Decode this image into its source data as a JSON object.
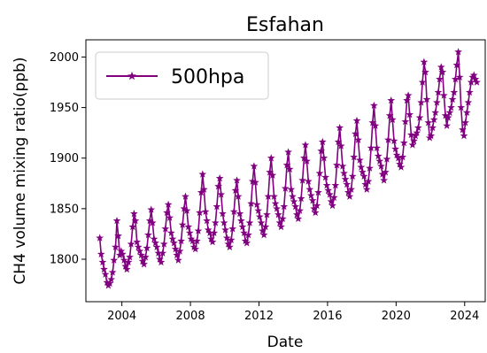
{
  "chart_data": {
    "type": "line",
    "title": "Esfahan",
    "xlabel": "Date",
    "ylabel": "CH4 volume mixing ratio(ppb)",
    "xlim": [
      2001.9,
      2025.2
    ],
    "ylim": [
      1758,
      2017
    ],
    "x_ticks": [
      2004,
      2008,
      2012,
      2016,
      2020,
      2024
    ],
    "y_ticks": [
      1800,
      1850,
      1900,
      1950,
      2000
    ],
    "grid": false,
    "legend": {
      "position": "top-left"
    },
    "series": [
      {
        "name": "500hpa",
        "color": "#800080",
        "marker": "star",
        "x": [
          2002.71,
          2002.79,
          2002.88,
          2002.96,
          2003.04,
          2003.13,
          2003.21,
          2003.29,
          2003.38,
          2003.46,
          2003.54,
          2003.63,
          2003.71,
          2003.79,
          2003.88,
          2003.96,
          2004.04,
          2004.13,
          2004.21,
          2004.29,
          2004.38,
          2004.46,
          2004.54,
          2004.63,
          2004.71,
          2004.79,
          2004.88,
          2004.96,
          2005.04,
          2005.13,
          2005.21,
          2005.29,
          2005.38,
          2005.46,
          2005.54,
          2005.63,
          2005.71,
          2005.79,
          2005.88,
          2005.96,
          2006.04,
          2006.13,
          2006.21,
          2006.29,
          2006.38,
          2006.46,
          2006.54,
          2006.63,
          2006.71,
          2006.79,
          2006.88,
          2006.96,
          2007.04,
          2007.13,
          2007.21,
          2007.29,
          2007.38,
          2007.46,
          2007.54,
          2007.63,
          2007.71,
          2007.79,
          2007.88,
          2007.96,
          2008.04,
          2008.13,
          2008.21,
          2008.29,
          2008.38,
          2008.46,
          2008.54,
          2008.63,
          2008.71,
          2008.79,
          2008.88,
          2008.96,
          2009.04,
          2009.13,
          2009.21,
          2009.29,
          2009.38,
          2009.46,
          2009.54,
          2009.63,
          2009.71,
          2009.79,
          2009.88,
          2009.96,
          2010.04,
          2010.13,
          2010.21,
          2010.29,
          2010.38,
          2010.46,
          2010.54,
          2010.63,
          2010.71,
          2010.79,
          2010.88,
          2010.96,
          2011.04,
          2011.13,
          2011.21,
          2011.29,
          2011.38,
          2011.46,
          2011.54,
          2011.63,
          2011.71,
          2011.79,
          2011.88,
          2011.96,
          2012.04,
          2012.13,
          2012.21,
          2012.29,
          2012.38,
          2012.46,
          2012.54,
          2012.63,
          2012.71,
          2012.79,
          2012.88,
          2012.96,
          2013.04,
          2013.13,
          2013.21,
          2013.29,
          2013.38,
          2013.46,
          2013.54,
          2013.63,
          2013.71,
          2013.79,
          2013.88,
          2013.96,
          2014.04,
          2014.13,
          2014.21,
          2014.29,
          2014.38,
          2014.46,
          2014.54,
          2014.63,
          2014.71,
          2014.79,
          2014.88,
          2014.96,
          2015.04,
          2015.13,
          2015.21,
          2015.29,
          2015.38,
          2015.46,
          2015.54,
          2015.63,
          2015.71,
          2015.79,
          2015.88,
          2015.96,
          2016.04,
          2016.13,
          2016.21,
          2016.29,
          2016.38,
          2016.46,
          2016.54,
          2016.63,
          2016.71,
          2016.79,
          2016.88,
          2016.96,
          2017.04,
          2017.13,
          2017.21,
          2017.29,
          2017.38,
          2017.46,
          2017.54,
          2017.63,
          2017.71,
          2017.79,
          2017.88,
          2017.96,
          2018.04,
          2018.13,
          2018.21,
          2018.29,
          2018.38,
          2018.46,
          2018.54,
          2018.63,
          2018.71,
          2018.79,
          2018.88,
          2018.96,
          2019.04,
          2019.13,
          2019.21,
          2019.29,
          2019.38,
          2019.46,
          2019.54,
          2019.63,
          2019.71,
          2019.79,
          2019.88,
          2019.96,
          2020.04,
          2020.13,
          2020.21,
          2020.29,
          2020.38,
          2020.46,
          2020.54,
          2020.63,
          2020.71,
          2020.79,
          2020.88,
          2020.96,
          2021.04,
          2021.13,
          2021.21,
          2021.29,
          2021.38,
          2021.46,
          2021.54,
          2021.63,
          2021.71,
          2021.79,
          2021.88,
          2021.96,
          2022.04,
          2022.13,
          2022.21,
          2022.29,
          2022.38,
          2022.46,
          2022.54,
          2022.63,
          2022.71,
          2022.79,
          2022.88,
          2022.96,
          2023.04,
          2023.13,
          2023.21,
          2023.29,
          2023.38,
          2023.46,
          2023.54,
          2023.63,
          2023.71,
          2023.79,
          2023.88,
          2023.96,
          2024.04,
          2024.13,
          2024.21,
          2024.29,
          2024.38,
          2024.46,
          2024.54,
          2024.63,
          2024.71
        ],
        "y": [
          1821,
          1805,
          1797,
          1790,
          1785,
          1777,
          1774,
          1776,
          1780,
          1787,
          1799,
          1812,
          1838,
          1823,
          1804,
          1808,
          1805,
          1799,
          1793,
          1790,
          1797,
          1802,
          1815,
          1832,
          1845,
          1838,
          1817,
          1812,
          1808,
          1804,
          1798,
          1795,
          1802,
          1811,
          1824,
          1838,
          1849,
          1836,
          1820,
          1816,
          1812,
          1806,
          1800,
          1797,
          1806,
          1815,
          1830,
          1846,
          1854,
          1841,
          1826,
          1820,
          1816,
          1810,
          1804,
          1799,
          1808,
          1818,
          1834,
          1850,
          1862,
          1848,
          1832,
          1826,
          1820,
          1818,
          1812,
          1810,
          1818,
          1828,
          1846,
          1866,
          1884,
          1869,
          1847,
          1838,
          1829,
          1826,
          1820,
          1817,
          1826,
          1836,
          1852,
          1872,
          1880,
          1864,
          1845,
          1836,
          1829,
          1821,
          1815,
          1812,
          1819,
          1830,
          1847,
          1868,
          1878,
          1862,
          1845,
          1838,
          1832,
          1826,
          1818,
          1816,
          1824,
          1836,
          1855,
          1877,
          1892,
          1876,
          1854,
          1848,
          1842,
          1836,
          1828,
          1824,
          1832,
          1844,
          1862,
          1886,
          1900,
          1883,
          1862,
          1855,
          1850,
          1844,
          1836,
          1832,
          1840,
          1852,
          1870,
          1893,
          1906,
          1889,
          1869,
          1862,
          1857,
          1852,
          1844,
          1840,
          1848,
          1860,
          1878,
          1900,
          1913,
          1897,
          1877,
          1869,
          1863,
          1858,
          1850,
          1846,
          1853,
          1866,
          1885,
          1907,
          1916,
          1900,
          1881,
          1873,
          1868,
          1864,
          1857,
          1853,
          1861,
          1873,
          1893,
          1916,
          1930,
          1912,
          1892,
          1885,
          1879,
          1874,
          1866,
          1862,
          1869,
          1882,
          1901,
          1924,
          1937,
          1918,
          1898,
          1891,
          1886,
          1882,
          1874,
          1869,
          1877,
          1890,
          1910,
          1935,
          1952,
          1932,
          1910,
          1902,
          1897,
          1892,
          1884,
          1878,
          1886,
          1899,
          1918,
          1942,
          1957,
          1938,
          1917,
          1909,
          1903,
          1900,
          1894,
          1891,
          1901,
          1915,
          1936,
          1957,
          1962,
          1943,
          1923,
          1913,
          1917,
          1922,
          1925,
          1930,
          1940,
          1955,
          1975,
          1995,
          1985,
          1958,
          1935,
          1920,
          1922,
          1930,
          1938,
          1945,
          1955,
          1965,
          1978,
          1990,
          1985,
          1962,
          1942,
          1932,
          1940,
          1945,
          1950,
          1958,
          1965,
          1978,
          1992,
          2005,
          1980,
          1950,
          1928,
          1922,
          1935,
          1945,
          1955,
          1965,
          1975,
          1980,
          1982,
          1978,
          1975
        ]
      }
    ]
  }
}
